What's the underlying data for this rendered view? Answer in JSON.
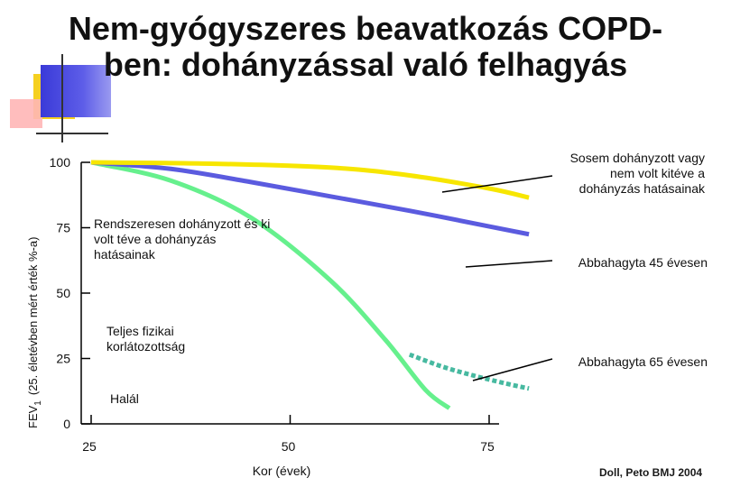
{
  "slide": {
    "title_line1": "Nem-gyógyszeres beavatkozás COPD-",
    "title_line2": "ben: dohányzással való felhagyás",
    "citation": "Doll, Peto BMJ 2004"
  },
  "chart_data": {
    "type": "line",
    "xlabel": "Kor (évek)",
    "ylabel": "FEV1 (25. életévben mért érték %-a)",
    "ylabel_main": "FEV",
    "ylabel_sub": "1",
    "ylabel_rest": "(25. életévben mért érték %-a)",
    "xlim": [
      25,
      82
    ],
    "ylim": [
      0,
      100
    ],
    "xticks": [
      25,
      50,
      75
    ],
    "yticks": [
      0,
      25,
      50,
      75,
      100
    ],
    "grid": false,
    "colors": {
      "never": "#f7e600",
      "stop45": "#5b5bdf",
      "smoker": "#66f08d",
      "stop65": "#47b9a0"
    },
    "series": [
      {
        "id": "never",
        "name": "Sosem dohányzott vagy nem volt kitéve a dohányzás hatásainak",
        "style": "solid",
        "x": [
          25,
          40,
          55,
          65,
          75,
          80
        ],
        "y": [
          100,
          99.5,
          98,
          95,
          90,
          86.5
        ]
      },
      {
        "id": "stop45",
        "name": "Abbahagyta 45 évesen",
        "style": "solid",
        "x": [
          25,
          35,
          45,
          55,
          65,
          75,
          80
        ],
        "y": [
          100,
          97.5,
          92.5,
          87,
          81.5,
          75.5,
          72.5
        ]
      },
      {
        "id": "smoker",
        "name": "Rendszeresen dohányzott és ki volt téve a dohányzás hatásainak",
        "style": "solid",
        "x": [
          25,
          35,
          45,
          55,
          62,
          67,
          70
        ],
        "y": [
          100,
          93,
          79,
          55,
          32,
          13,
          6
        ]
      },
      {
        "id": "stop65",
        "name": "Abbahagyta 65 évesen",
        "style": "dashed",
        "x": [
          65,
          69,
          73,
          77,
          80
        ],
        "y": [
          26.5,
          22,
          18.5,
          15.5,
          13.5
        ]
      }
    ],
    "annotations": [
      {
        "id": "never_note",
        "lines": [
          "Sosem dohányzott vagy",
          "nem volt kitéve a",
          "dohányzás hatásainak"
        ]
      },
      {
        "id": "smoker_note",
        "lines": [
          "Rendszeresen dohányzott és ki",
          "volt téve a dohányzás",
          "hatásainak"
        ]
      },
      {
        "id": "stop45_note",
        "lines": [
          "Abbahagyta 45 évesen"
        ]
      },
      {
        "id": "disability_note",
        "lines": [
          "Teljes fizikai",
          "korlátozottság"
        ]
      },
      {
        "id": "stop65_note",
        "lines": [
          "Abbahagyta 65 évesen"
        ]
      },
      {
        "id": "death_note",
        "lines": [
          "Halál"
        ]
      }
    ]
  }
}
